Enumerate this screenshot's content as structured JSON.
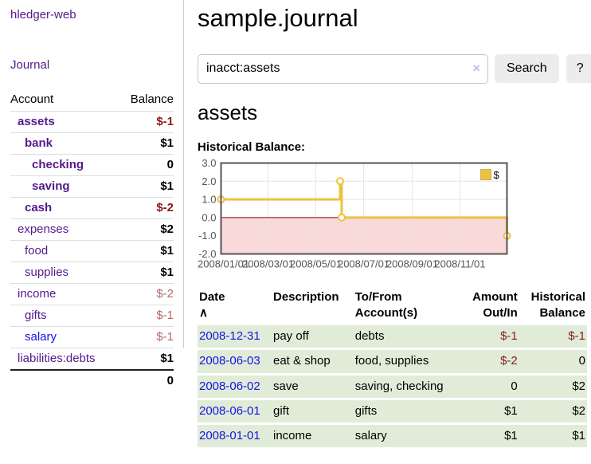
{
  "app": {
    "brand": "hledger-web",
    "nav_journal": "Journal"
  },
  "sidebar": {
    "col_account": "Account",
    "col_balance": "Balance",
    "accounts": [
      {
        "name": "assets",
        "depth": 0,
        "active": true,
        "balance": "$-1",
        "negative": true
      },
      {
        "name": "bank",
        "depth": 1,
        "active": true,
        "balance": "$1",
        "negative": false
      },
      {
        "name": "checking",
        "depth": 2,
        "active": true,
        "balance": "0",
        "negative": false
      },
      {
        "name": "saving",
        "depth": 2,
        "active": true,
        "balance": "$1",
        "negative": false
      },
      {
        "name": "cash",
        "depth": 1,
        "active": true,
        "balance": "$-2",
        "negative": true
      },
      {
        "name": "expenses",
        "depth": 0,
        "active": false,
        "balance": "$2",
        "negative": false
      },
      {
        "name": "food",
        "depth": 1,
        "active": false,
        "balance": "$1",
        "negative": false
      },
      {
        "name": "supplies",
        "depth": 1,
        "active": false,
        "balance": "$1",
        "negative": false
      },
      {
        "name": "income",
        "depth": 0,
        "active": false,
        "balance": "$-2",
        "negative": true
      },
      {
        "name": "gifts",
        "depth": 1,
        "active": false,
        "balance": "$-1",
        "negative": true
      },
      {
        "name": "salary",
        "depth": 1,
        "active": false,
        "balance": "$-1",
        "negative": true,
        "unvisited": true
      },
      {
        "name": "liabilities:debts",
        "depth": 0,
        "active": false,
        "balance": "$1",
        "negative": false
      }
    ],
    "total": "0"
  },
  "header": {
    "title": "sample.journal"
  },
  "search": {
    "value": "inacct:assets",
    "clear_icon": "×",
    "button": "Search",
    "help": "?"
  },
  "account_page": {
    "title": "assets",
    "chart_label": "Historical Balance:"
  },
  "chart_data": {
    "type": "line",
    "step": true,
    "title": "Historical Balance:",
    "series": [
      {
        "name": "$",
        "color": "#edc240",
        "points": [
          [
            "2008-01-01",
            1.0
          ],
          [
            "2008-06-01",
            2.0
          ],
          [
            "2008-06-03",
            0.0
          ],
          [
            "2008-12-31",
            -1.0
          ]
        ]
      }
    ],
    "xlim": [
      "2008-01-01",
      "2008-12-31"
    ],
    "ylim": [
      -2.0,
      3.0
    ],
    "y_ticks": [
      3,
      2,
      1,
      0,
      -1,
      -2
    ],
    "x_tick_dates": [
      "2008-01-01",
      "2008-03-01",
      "2008-05-01",
      "2008-07-01",
      "2008-09-01",
      "2008-11-01"
    ],
    "x_ticks": [
      "2008/01/01",
      "2008/03/01",
      "2008/05/01",
      "2008/07/01",
      "2008/09/01",
      "2008/11/01"
    ],
    "grid": true,
    "legend_position": "top-right",
    "negative_region_color": "#f9d9d9",
    "zero_line_color": "#8b0000",
    "grid_color": "#e6e6e6",
    "border_color": "#545454",
    "tick_label_color": "#555555"
  },
  "register": {
    "sort_icon": "∧",
    "columns": [
      "Date",
      "Description",
      "To/From\nAccount(s)",
      "Amount\nOut/In",
      "Historical\nBalance"
    ],
    "rows": [
      {
        "date": "2008-12-31",
        "description": "pay off",
        "accounts": "debts",
        "amount": "$-1",
        "amount_negative": true,
        "balance": "$-1",
        "balance_negative": true
      },
      {
        "date": "2008-06-03",
        "description": "eat & shop",
        "accounts": "food, supplies",
        "amount": "$-2",
        "amount_negative": true,
        "balance": "0",
        "balance_negative": false
      },
      {
        "date": "2008-06-02",
        "description": "save",
        "accounts": "saving, checking",
        "amount": "0",
        "amount_negative": false,
        "balance": "$2",
        "balance_negative": false
      },
      {
        "date": "2008-06-01",
        "description": "gift",
        "accounts": "gifts",
        "amount": "$1",
        "amount_negative": false,
        "balance": "$2",
        "balance_negative": false
      },
      {
        "date": "2008-01-01",
        "description": "income",
        "accounts": "salary",
        "amount": "$1",
        "amount_negative": false,
        "balance": "$1",
        "balance_negative": false
      }
    ]
  }
}
